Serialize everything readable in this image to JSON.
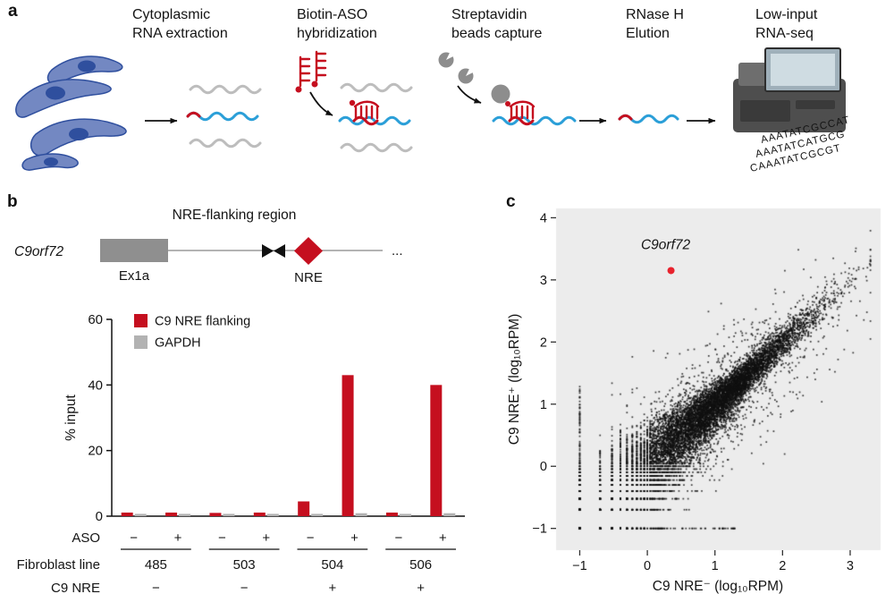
{
  "figure": {
    "panel_a": {
      "label": "a",
      "steps": [
        "Cytoplasmic\nRNA extraction",
        "Biotin-ASO\nhybridization",
        "Streptavidin\nbeads capture",
        "RNase H\nElution",
        "Low-input\nRNA-seq"
      ],
      "sequencer_reads": [
        "AAATATCGCCAT",
        "AAATATCATGCG",
        "CAAATATCGCGT"
      ]
    },
    "panel_b": {
      "label": "b",
      "gene": "C9orf72",
      "region_label": "NRE-flanking region",
      "exon_label": "Ex1a",
      "nre_label": "NRE",
      "ellipsis": "...",
      "row_labels": {
        "aso": "ASO",
        "fibroblast": "Fibroblast line",
        "c9nre": "C9 NRE"
      }
    },
    "panel_c": {
      "label": "c"
    }
  },
  "colors": {
    "red": "#c50f1f",
    "gray_bar": "#b2b2b2",
    "blue_rna": "#2b9fd8",
    "gray_rna": "#bdbdbd",
    "bead_gray": "#8d8d8d",
    "cell_blue": "#7388c2",
    "plot_bg": "#ececec",
    "orange": "#e0793c",
    "highlight_red": "#e8222d"
  },
  "chart_data": [
    {
      "type": "bar",
      "panel": "b",
      "ylabel": "% input",
      "ylim": [
        0,
        60
      ],
      "yticks": [
        0,
        20,
        40,
        60
      ],
      "categories": [
        "485 ASO−",
        "485 ASO+",
        "503 ASO−",
        "503 ASO+",
        "504 ASO−",
        "504 ASO+",
        "506 ASO−",
        "506 ASO+"
      ],
      "series": [
        {
          "name": "C9 NRE flanking",
          "color": "#c50f1f",
          "values": [
            1.1,
            1.1,
            1.0,
            1.1,
            4.5,
            43,
            1.1,
            40
          ]
        },
        {
          "name": "GAPDH",
          "color": "#b2b2b2",
          "values": [
            0.7,
            0.7,
            0.7,
            0.7,
            0.7,
            0.9,
            0.7,
            0.9
          ]
        }
      ],
      "aso_row": [
        "−",
        "+",
        "−",
        "+",
        "−",
        "+",
        "−",
        "+"
      ],
      "fibroblast_lines": [
        "485",
        "503",
        "504",
        "506"
      ],
      "c9_nre_row": [
        "−",
        "−",
        "+",
        "+"
      ],
      "legend_position": "top-left inside"
    },
    {
      "type": "scatter",
      "panel": "c",
      "xlabel": "C9 NRE⁻ (log₁₀RPM)",
      "ylabel": "C9 NRE⁺ (log₁₀RPM)",
      "xlim": [
        -1.35,
        3.45
      ],
      "ylim": [
        -1.35,
        4.15
      ],
      "xticks": [
        -1,
        0,
        1,
        2,
        3
      ],
      "yticks": [
        -1,
        0,
        1,
        2,
        3,
        4
      ],
      "grid": false,
      "panel_background": "#ececec",
      "point_color": "#111111",
      "highlight": {
        "label": "C9orf72",
        "x": 0.35,
        "y": 3.15,
        "color": "#e8222d"
      },
      "cloud": {
        "description": "dense transcriptome cloud highly correlated along the diagonal from (−1,−1) to (3,3); discrete value stripes near −1 on both axes",
        "n_core": 9000,
        "n_halo": 1400,
        "n_axis": 260
      }
    }
  ]
}
